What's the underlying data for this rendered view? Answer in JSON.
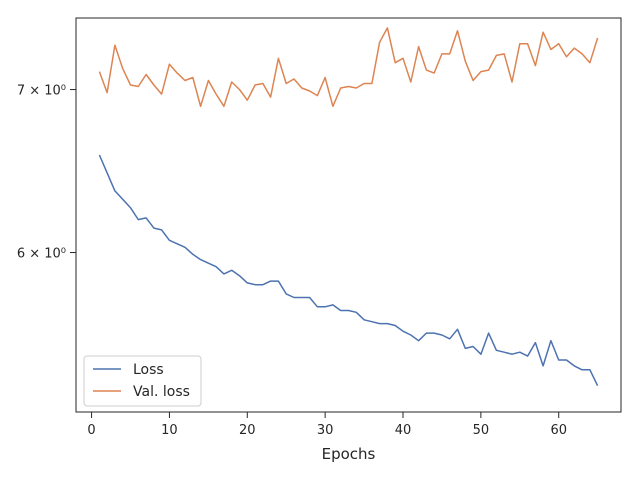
{
  "chart_data": {
    "type": "line",
    "title": "",
    "xlabel": "Epochs",
    "ylabel": "",
    "yscale": "log",
    "grid": false,
    "legend_position": "lower-left",
    "xlim": [
      -2,
      68
    ],
    "ylim": [
      5.16,
      7.49
    ],
    "x_ticks": [
      0,
      10,
      20,
      30,
      40,
      50,
      60
    ],
    "y_ticks": [
      {
        "value": 6,
        "label": "6 × 10⁰"
      },
      {
        "value": 7,
        "label": "7 × 10⁰"
      }
    ],
    "x": [
      1,
      2,
      3,
      4,
      5,
      6,
      7,
      8,
      9,
      10,
      11,
      12,
      13,
      14,
      15,
      16,
      17,
      18,
      19,
      20,
      21,
      22,
      23,
      24,
      25,
      26,
      27,
      28,
      29,
      30,
      31,
      32,
      33,
      34,
      35,
      36,
      37,
      38,
      39,
      40,
      41,
      42,
      43,
      44,
      45,
      46,
      47,
      48,
      49,
      50,
      51,
      52,
      53,
      54,
      55,
      56,
      57,
      58,
      59,
      60,
      61,
      62,
      63,
      64,
      65
    ],
    "series": [
      {
        "name": "Loss",
        "color": "#4c72b0",
        "values": [
          6.58,
          6.47,
          6.36,
          6.31,
          6.26,
          6.19,
          6.2,
          6.14,
          6.13,
          6.07,
          6.05,
          6.03,
          5.99,
          5.96,
          5.94,
          5.92,
          5.88,
          5.9,
          5.87,
          5.83,
          5.82,
          5.82,
          5.84,
          5.84,
          5.77,
          5.75,
          5.75,
          5.75,
          5.7,
          5.7,
          5.71,
          5.68,
          5.68,
          5.67,
          5.63,
          5.62,
          5.61,
          5.61,
          5.6,
          5.57,
          5.55,
          5.52,
          5.56,
          5.56,
          5.55,
          5.53,
          5.58,
          5.48,
          5.49,
          5.45,
          5.56,
          5.47,
          5.46,
          5.45,
          5.46,
          5.44,
          5.51,
          5.39,
          5.52,
          5.42,
          5.42,
          5.39,
          5.37,
          5.37,
          5.29
        ]
      },
      {
        "name": "Val. loss",
        "color": "#dd8452",
        "values": [
          7.12,
          6.98,
          7.3,
          7.14,
          7.03,
          7.02,
          7.1,
          7.03,
          6.97,
          7.17,
          7.11,
          7.06,
          7.08,
          6.89,
          7.06,
          6.97,
          6.89,
          7.05,
          7.0,
          6.93,
          7.03,
          7.04,
          6.95,
          7.21,
          7.04,
          7.07,
          7.01,
          6.99,
          6.96,
          7.08,
          6.89,
          7.01,
          7.02,
          7.01,
          7.04,
          7.04,
          7.32,
          7.42,
          7.18,
          7.21,
          7.05,
          7.29,
          7.13,
          7.11,
          7.24,
          7.24,
          7.4,
          7.19,
          7.06,
          7.12,
          7.13,
          7.23,
          7.24,
          7.05,
          7.31,
          7.31,
          7.16,
          7.39,
          7.27,
          7.31,
          7.22,
          7.28,
          7.24,
          7.18,
          7.35
        ]
      }
    ]
  }
}
